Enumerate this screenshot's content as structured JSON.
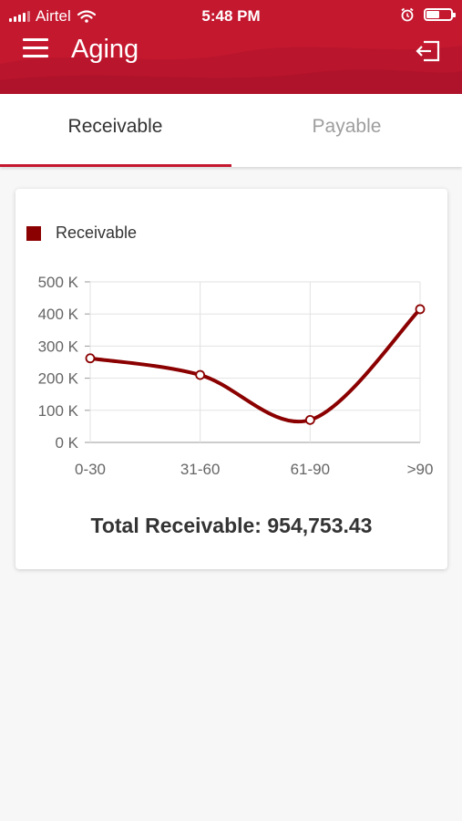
{
  "status_bar": {
    "carrier": "Airtel",
    "time": "5:48 PM",
    "battery_level": 0.55
  },
  "header": {
    "title": "Aging",
    "menu_icon": "hamburger-menu-icon",
    "logout_icon": "logout-icon",
    "color": "#c4182f"
  },
  "tabs": [
    {
      "label": "Receivable",
      "active": true
    },
    {
      "label": "Payable",
      "active": false
    }
  ],
  "chart_data": {
    "type": "line",
    "categories": [
      "0-30",
      "31-60",
      "61-90",
      ">90"
    ],
    "series": [
      {
        "name": "Receivable",
        "values": [
          262000,
          210000,
          70000,
          415000
        ],
        "color": "#8b0000"
      }
    ],
    "ylim": [
      0,
      500000
    ],
    "yticks": [
      0,
      100000,
      200000,
      300000,
      400000,
      500000
    ],
    "ytick_labels": [
      "0 K",
      "100 K",
      "200 K",
      "300 K",
      "400 K",
      "500 K"
    ],
    "grid": true,
    "legend": "top-left"
  },
  "summary": {
    "total_text": "Total Receivable: 954,753.43"
  }
}
